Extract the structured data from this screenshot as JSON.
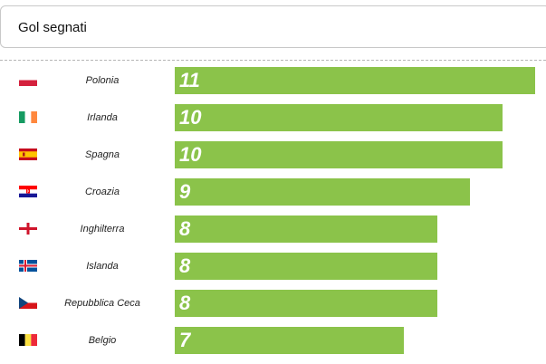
{
  "header": {
    "title": "Gol segnati"
  },
  "chart_data": {
    "type": "bar",
    "orientation": "horizontal",
    "title": "Gol segnati",
    "categories": [
      "Polonia",
      "Irlanda",
      "Spagna",
      "Croazia",
      "Inghilterra",
      "Islanda",
      "Repubblica Ceca",
      "Belgio"
    ],
    "values": [
      11,
      10,
      10,
      9,
      8,
      8,
      8,
      7
    ],
    "flags": [
      "poland-flag-icon",
      "ireland-flag-icon",
      "spain-flag-icon",
      "croatia-flag-icon",
      "england-flag-icon",
      "iceland-flag-icon",
      "czech-republic-flag-icon",
      "belgium-flag-icon"
    ],
    "bar_color": "#8bc34a",
    "value_label_color": "#ffffff"
  }
}
